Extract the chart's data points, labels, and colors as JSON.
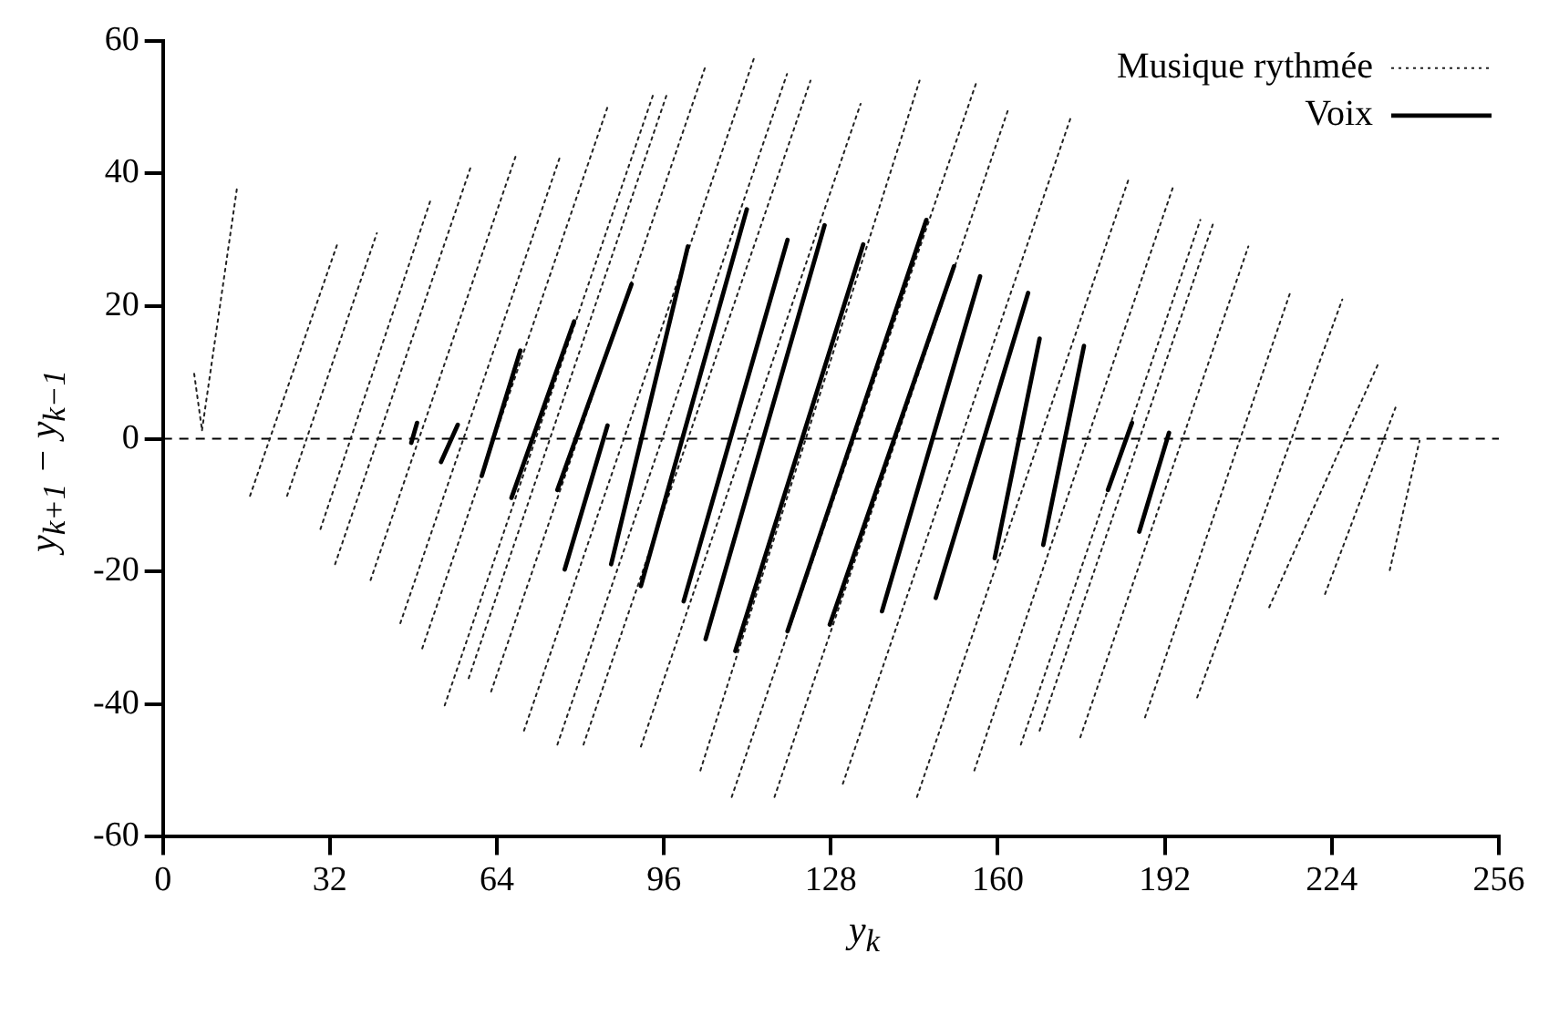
{
  "chart_data": {
    "type": "line",
    "xlabel": "y$_{k}$",
    "ylabel": "y$_{k+1}$ − y$_{k−1}$",
    "xlim": [
      0,
      256
    ],
    "xticks": [
      0,
      32,
      64,
      96,
      128,
      160,
      192,
      224,
      256
    ],
    "ylim": [
      -60,
      60
    ],
    "yticks": [
      -60,
      -40,
      -20,
      0,
      20,
      40,
      60
    ],
    "grid": false,
    "legend": "top right",
    "ref_lines": [
      {
        "axis": "y",
        "value": 0,
        "color": "#000000",
        "line_style": "dashed"
      }
    ],
    "series": [
      {
        "name": "Musique rythmée",
        "color": "#222222",
        "line_style": "dotted",
        "x": [
          6,
          7.5,
          null,
          7.5,
          14.2,
          null,
          16.7,
          33.4,
          null,
          23.8,
          41,
          null,
          30.2,
          51.3,
          null,
          33,
          59,
          null,
          39.8,
          67.6,
          null,
          45.5,
          76,
          null,
          49.7,
          85.2,
          null,
          54,
          94,
          null,
          58.6,
          96.6,
          null,
          62.9,
          103.9,
          null,
          69.2,
          113.5,
          null,
          75.6,
          119.6,
          null,
          80.6,
          124.1,
          null,
          91.6,
          133.7,
          null,
          103,
          145,
          null,
          109,
          156,
          null,
          117.2,
          162,
          null,
          130.3,
          174,
          null,
          144.5,
          185,
          null,
          155.5,
          193.5,
          null,
          164.4,
          198.8,
          null,
          168,
          201.4,
          null,
          175.8,
          208,
          null,
          188.2,
          216,
          null,
          198.2,
          226,
          null,
          212,
          233,
          null,
          222.7,
          236.2,
          null,
          235.1,
          240.8
        ],
        "values": [
          9.8,
          1.3,
          null,
          1.3,
          37.8,
          null,
          -8.6,
          29.3,
          null,
          -8.6,
          31,
          null,
          -13.6,
          36,
          null,
          -18.9,
          41,
          null,
          -21.3,
          42.6,
          null,
          -27.8,
          42.3,
          null,
          -31.6,
          50,
          null,
          -40.2,
          52,
          null,
          -36.1,
          52,
          null,
          -38.1,
          56,
          null,
          -44,
          57.9,
          null,
          -46.1,
          55,
          null,
          -46.1,
          54,
          null,
          -46.4,
          50.5,
          null,
          -50,
          54,
          null,
          -54,
          54,
          null,
          -54,
          49.7,
          null,
          -52,
          48.5,
          null,
          -54,
          39,
          null,
          -50,
          37.8,
          null,
          -46.1,
          33,
          null,
          -44,
          32.8,
          null,
          -45,
          29,
          null,
          -42,
          22,
          null,
          -39,
          21,
          null,
          -25.4,
          11.5,
          null,
          -23.4,
          4.7,
          null,
          -19.8,
          -0.3
        ]
      },
      {
        "name": "Voix",
        "color": "#000000",
        "line_style": "solid",
        "x": [
          47.6,
          48.7,
          null,
          53.3,
          56.5,
          null,
          61.1,
          68.5,
          null,
          66.8,
          78.8,
          null,
          75.6,
          89.8,
          null,
          77,
          85.2,
          null,
          85.9,
          100.6,
          null,
          91.6,
          111.9,
          null,
          99.8,
          119.7,
          null,
          104,
          126.8,
          null,
          109.7,
          134.2,
          null,
          119.7,
          146.3,
          null,
          127.8,
          151.6,
          null,
          137.8,
          156.6,
          null,
          148.1,
          165.8,
          null,
          159.4,
          168,
          null,
          168.7,
          176.5,
          null,
          181.1,
          185.7,
          null,
          187.1,
          192.8
        ],
        "values": [
          -0.6,
          2.4,
          null,
          -3.5,
          2.1,
          null,
          -5.6,
          13.3,
          null,
          -8.9,
          17.7,
          null,
          -7.7,
          23.3,
          null,
          -19.7,
          2,
          null,
          -18.9,
          29,
          null,
          -22.2,
          34.6,
          null,
          -24.5,
          30,
          null,
          -30.2,
          32.2,
          null,
          -32,
          29.3,
          null,
          -29,
          33,
          null,
          -28,
          26,
          null,
          -26,
          24.5,
          null,
          -24,
          22,
          null,
          -18,
          15.1,
          null,
          -16,
          14,
          null,
          -7.7,
          2.4,
          null,
          -14,
          0.9
        ]
      }
    ]
  }
}
